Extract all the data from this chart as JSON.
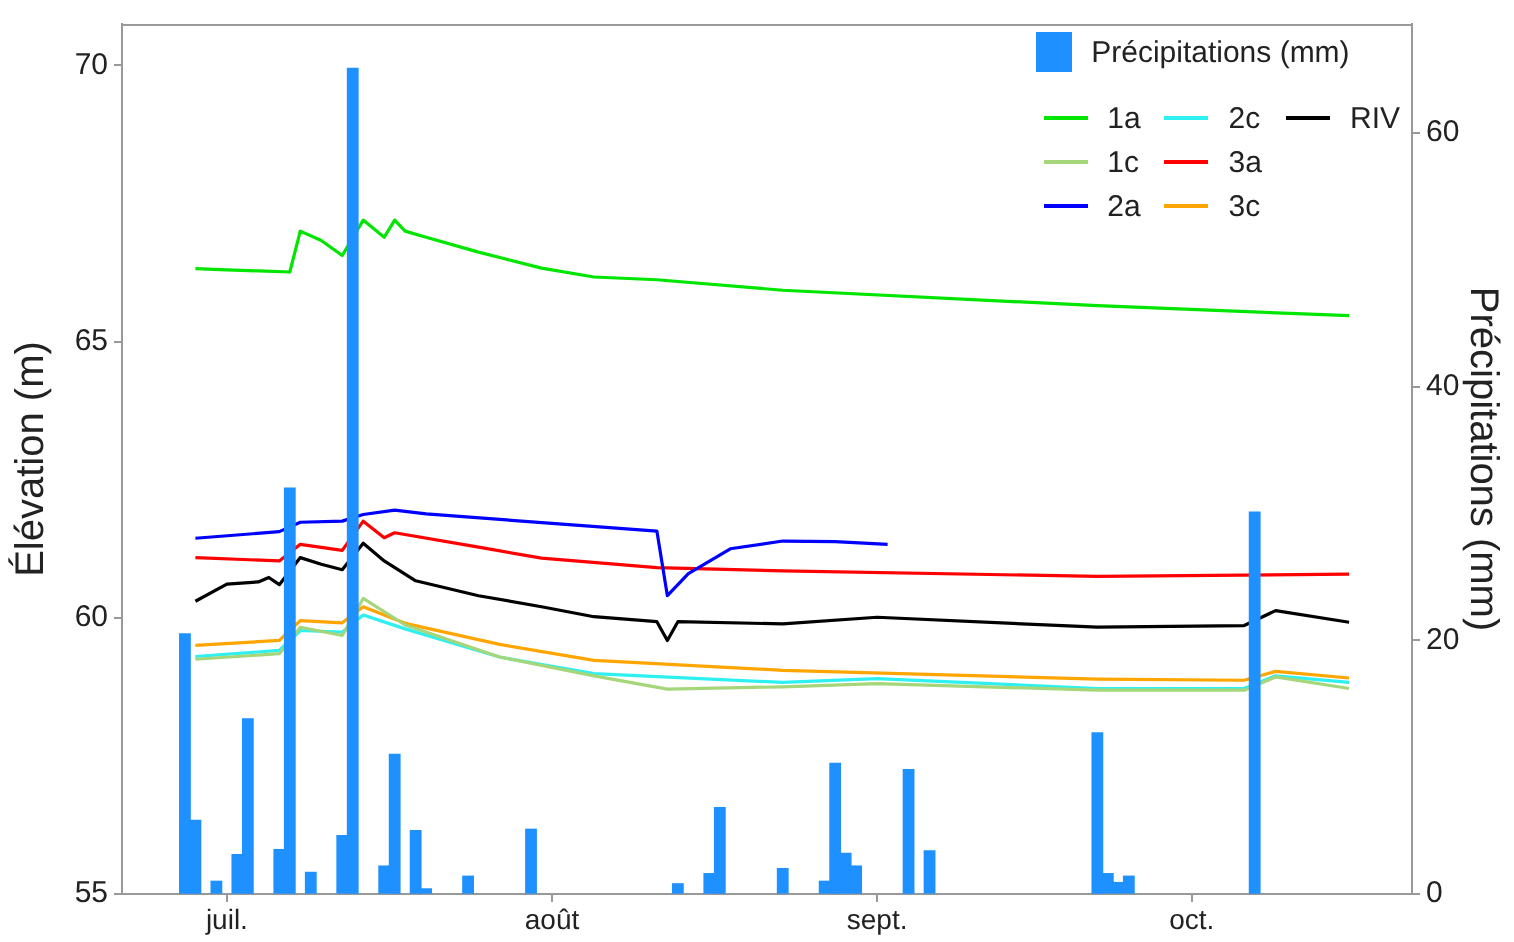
{
  "chart_data": {
    "type": "line",
    "ylabel": "Élévation (m)",
    "y2label": "Précipitations (mm)",
    "xlim": [
      "--06-21",
      "--10-22"
    ],
    "xticks": [
      {
        "value": "--07-01",
        "label": "juil."
      },
      {
        "value": "--08-01",
        "label": "août"
      },
      {
        "value": "--09-01",
        "label": "sept."
      },
      {
        "value": "--10-01",
        "label": "oct."
      }
    ],
    "ylim": [
      55,
      70.75
    ],
    "yticks": [
      55,
      60,
      65,
      70
    ],
    "y2lim": [
      0,
      68.6
    ],
    "y2ticks": [
      0,
      20,
      40,
      60
    ],
    "grid": false,
    "legend": "top right",
    "marker": "none",
    "series": [
      {
        "name": "Précipitations (mm)",
        "type": "bar",
        "axis": "y2",
        "color": "#1e90ff",
        "x": [
          "--06-27",
          "--06-28",
          "--06-30",
          "--07-02",
          "--07-03",
          "--07-06",
          "--07-07",
          "--07-09",
          "--07-12",
          "--07-13",
          "--07-16",
          "--07-17",
          "--07-19",
          "--07-20",
          "--07-24",
          "--07-30",
          "--08-13",
          "--08-16",
          "--08-17",
          "--08-23",
          "--08-27",
          "--08-28",
          "--08-29",
          "--08-30",
          "--09-04",
          "--09-06",
          "--09-22",
          "--09-23",
          "--09-24",
          "--09-25",
          "--10-07"
        ],
        "values": [
          20.5,
          5.8,
          1,
          3.1,
          13.8,
          3.5,
          32,
          1.7,
          4.6,
          65.1,
          2.2,
          11,
          5,
          0.4,
          1.4,
          5.1,
          0.8,
          1.6,
          6.8,
          2,
          1,
          10.3,
          3.2,
          2.2,
          9.8,
          3.4,
          12.7,
          1.6,
          0.9,
          1.4,
          30.1
        ]
      },
      {
        "name": "1a",
        "color": "#00e600",
        "x": [
          "--06-28",
          "--07-01",
          "--07-04",
          "--07-07",
          "--07-08",
          "--07-10",
          "--07-12",
          "--07-14",
          "--07-16",
          "--07-17",
          "--07-18",
          "--07-20",
          "--07-25",
          "--07-31",
          "--08-05",
          "--08-11",
          "--08-23",
          "--09-22",
          "--10-16"
        ],
        "values": [
          66.32,
          66.3,
          66.28,
          66.26,
          67.0,
          66.83,
          66.56,
          67.2,
          66.89,
          67.2,
          67.0,
          66.89,
          66.62,
          66.33,
          66.17,
          66.12,
          65.93,
          65.65,
          65.47
        ]
      },
      {
        "name": "1c",
        "color": "#a6d67a",
        "x": [
          "--06-28",
          "--07-06",
          "--07-08",
          "--07-12",
          "--07-14",
          "--07-18",
          "--07-27",
          "--08-05",
          "--08-12",
          "--08-23",
          "--09-01",
          "--09-22",
          "--10-06",
          "--10-09",
          "--10-16"
        ],
        "values": [
          59.25,
          59.35,
          59.83,
          59.68,
          60.35,
          59.87,
          59.29,
          58.95,
          58.71,
          58.75,
          58.81,
          58.69,
          58.69,
          58.93,
          58.72
        ]
      },
      {
        "name": "2a",
        "color": "#0000ff",
        "x": [
          "--06-28",
          "--07-06",
          "--07-08",
          "--07-12",
          "--07-14",
          "--07-17",
          "--07-20",
          "--08-11",
          "--08-12",
          "--08-14",
          "--08-18",
          "--08-23",
          "--08-28",
          "--09-02"
        ],
        "values": [
          61.44,
          61.56,
          61.73,
          61.75,
          61.87,
          61.95,
          61.88,
          61.57,
          60.4,
          60.8,
          61.25,
          61.39,
          61.38,
          61.33
        ]
      },
      {
        "name": "2c",
        "color": "#2ef0f0",
        "x": [
          "--06-28",
          "--07-06",
          "--07-08",
          "--07-12",
          "--07-14",
          "--07-18",
          "--07-27",
          "--08-05",
          "--08-23",
          "--09-01",
          "--09-22",
          "--10-06",
          "--10-09",
          "--10-16"
        ],
        "values": [
          59.3,
          59.41,
          59.77,
          59.74,
          60.05,
          59.8,
          59.29,
          58.99,
          58.83,
          58.9,
          58.72,
          58.72,
          58.95,
          58.83
        ]
      },
      {
        "name": "3a",
        "color": "#ff0000",
        "x": [
          "--06-28",
          "--07-06",
          "--07-08",
          "--07-12",
          "--07-14",
          "--07-16",
          "--07-17",
          "--07-25",
          "--07-31",
          "--08-11",
          "--08-23",
          "--09-22",
          "--10-16"
        ],
        "values": [
          61.09,
          61.03,
          61.33,
          61.22,
          61.75,
          61.45,
          61.54,
          61.28,
          61.08,
          60.91,
          60.85,
          60.75,
          60.79
        ]
      },
      {
        "name": "3c",
        "color": "#ffa500",
        "x": [
          "--06-28",
          "--07-06",
          "--07-08",
          "--07-12",
          "--07-14",
          "--07-18",
          "--07-27",
          "--08-05",
          "--08-23",
          "--09-22",
          "--10-06",
          "--10-09",
          "--10-16"
        ],
        "values": [
          59.5,
          59.59,
          59.95,
          59.91,
          60.2,
          59.9,
          59.52,
          59.23,
          59.05,
          58.89,
          58.87,
          59.03,
          58.91
        ]
      },
      {
        "name": "RIV",
        "color": "#000000",
        "x": [
          "--06-28",
          "--07-01",
          "--07-04",
          "--07-05",
          "--07-06",
          "--07-08",
          "--07-10",
          "--07-12",
          "--07-14",
          "--07-16",
          "--07-19",
          "--07-25",
          "--07-31",
          "--08-05",
          "--08-11",
          "--08-12",
          "--08-13",
          "--08-23",
          "--09-01",
          "--09-22",
          "--10-06",
          "--10-09",
          "--10-16"
        ],
        "values": [
          60.3,
          60.61,
          60.65,
          60.73,
          60.6,
          61.09,
          60.97,
          60.87,
          61.35,
          61.03,
          60.67,
          60.4,
          60.2,
          60.02,
          59.93,
          59.59,
          59.93,
          59.89,
          60.01,
          59.83,
          59.86,
          60.13,
          59.92
        ]
      }
    ]
  }
}
